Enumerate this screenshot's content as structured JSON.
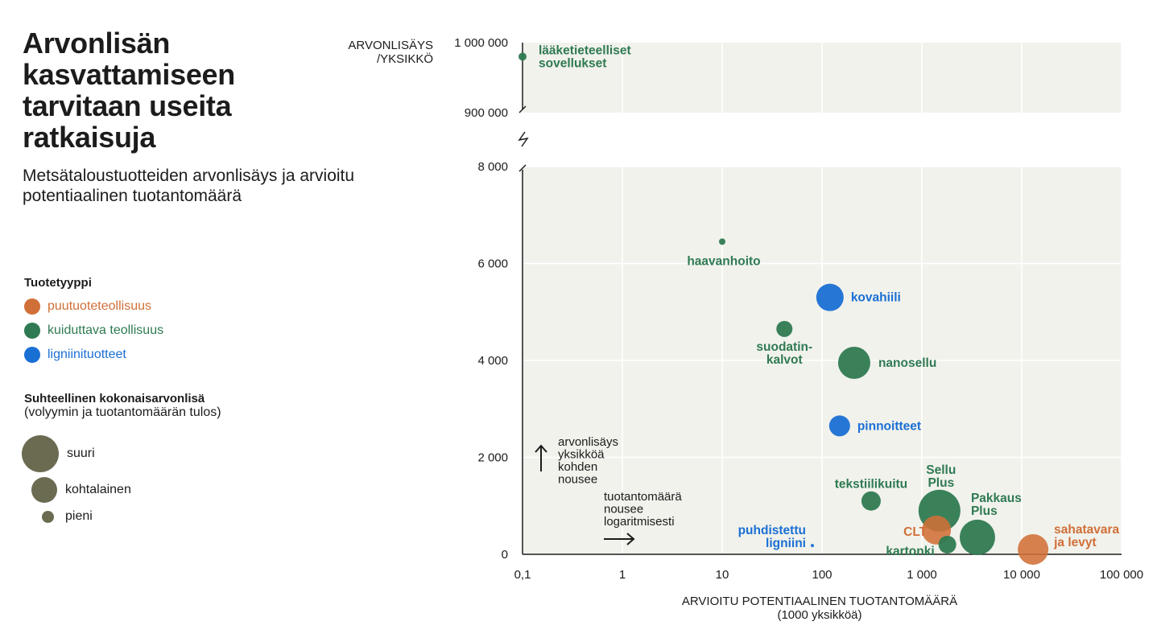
{
  "title": "Arvonlisän kasvattamiseen tarvitaan useita ratkaisuja",
  "subtitle": "Metsätaloustuotteiden arvonlisäys ja arvioitu potentiaalinen tuotantomäärä",
  "legend": {
    "type_heading": "Tuotetyyppi",
    "types": [
      {
        "key": "puu",
        "label": "puutuoteteollisuus",
        "color": "#d06f37"
      },
      {
        "key": "kuitu",
        "label": "kuiduttava teollisuus",
        "color": "#2f7a52"
      },
      {
        "key": "ligniini",
        "label": "ligniinituotteet",
        "color": "#1a6fd4"
      }
    ],
    "size_heading": "Suhteellinen kokonaisarvonlisä",
    "size_note": "(volyymin ja tuotantomäärän tulos)",
    "sizes": [
      {
        "key": "large",
        "label": "suuri"
      },
      {
        "key": "medium",
        "label": "kohtalainen"
      },
      {
        "key": "small",
        "label": "pieni"
      }
    ],
    "size_color": "#6b6b52"
  },
  "annotations": {
    "up_arrow_text": [
      "arvonlisäys",
      "yksikköä",
      "kohden",
      "nousee"
    ],
    "right_arrow_text": [
      "tuotantomäärä",
      "nousee",
      "logaritmisesti"
    ]
  },
  "chart_data": {
    "type": "scatter",
    "xlabel": [
      "ARVIOITU POTENTIAALINEN TUOTANTOMÄÄRÄ",
      "(1000 yksikköä)"
    ],
    "ylabel": [
      "ARVONLISÄYS",
      "/YKSIKKÖ"
    ],
    "x_scale": "log",
    "xlim": [
      0.1,
      100000
    ],
    "x_ticks": [
      {
        "value": 0.1,
        "label": "0,1"
      },
      {
        "value": 1,
        "label": "1"
      },
      {
        "value": 10,
        "label": "10"
      },
      {
        "value": 100,
        "label": "100"
      },
      {
        "value": 1000,
        "label": "1 000"
      },
      {
        "value": 10000,
        "label": "10 000"
      },
      {
        "value": 100000,
        "label": "100 000"
      }
    ],
    "ylim_lower": [
      0,
      8000
    ],
    "y_ticks_lower": [
      {
        "value": 0,
        "label": "0"
      },
      {
        "value": 2000,
        "label": "2 000"
      },
      {
        "value": 4000,
        "label": "4 000"
      },
      {
        "value": 6000,
        "label": "6 000"
      },
      {
        "value": 8000,
        "label": "8 000"
      }
    ],
    "ylim_upper": [
      900000,
      1000000
    ],
    "y_ticks_upper": [
      {
        "value": 900000,
        "label": "900 000"
      },
      {
        "value": 1000000,
        "label": "1 000 000"
      }
    ],
    "broken_axis": true,
    "grid": true,
    "points": [
      {
        "label": [
          "lääketieteelliset",
          "sovellukset"
        ],
        "x": 0.1,
        "y": 980000,
        "type": "kuitu",
        "size": 5
      },
      {
        "label": [
          "haavanhoito"
        ],
        "x": 10,
        "y": 6450,
        "type": "kuitu",
        "size": 4
      },
      {
        "label": [
          "kovahiili"
        ],
        "x": 120,
        "y": 5300,
        "type": "ligniini",
        "size": 17
      },
      {
        "label": [
          "suodatin-",
          "kalvot"
        ],
        "x": 42,
        "y": 4650,
        "type": "kuitu",
        "size": 10
      },
      {
        "label": [
          "nanosellu"
        ],
        "x": 210,
        "y": 3950,
        "type": "kuitu",
        "size": 20
      },
      {
        "label": [
          "pinnoitteet"
        ],
        "x": 150,
        "y": 2650,
        "type": "ligniini",
        "size": 13
      },
      {
        "label": [
          "tekstiilikuitu"
        ],
        "x": 310,
        "y": 1100,
        "type": "kuitu",
        "size": 12
      },
      {
        "label": [
          "puhdistettu",
          "ligniini"
        ],
        "x": 80,
        "y": 180,
        "type": "ligniini",
        "size": 2
      },
      {
        "label": [
          "Sellu",
          "Plus"
        ],
        "x": 1500,
        "y": 900,
        "type": "kuitu",
        "size": 26
      },
      {
        "label": [
          "CLT"
        ],
        "x": 1400,
        "y": 500,
        "type": "puu",
        "size": 18
      },
      {
        "label": [
          "kartonki"
        ],
        "x": 1800,
        "y": 200,
        "type": "kuitu",
        "size": 11
      },
      {
        "label": [
          "Pakkaus",
          "Plus"
        ],
        "x": 3600,
        "y": 350,
        "type": "kuitu",
        "size": 22
      },
      {
        "label": [
          "sahatavara",
          "ja levyt"
        ],
        "x": 13000,
        "y": 100,
        "type": "puu",
        "size": 19
      }
    ]
  }
}
